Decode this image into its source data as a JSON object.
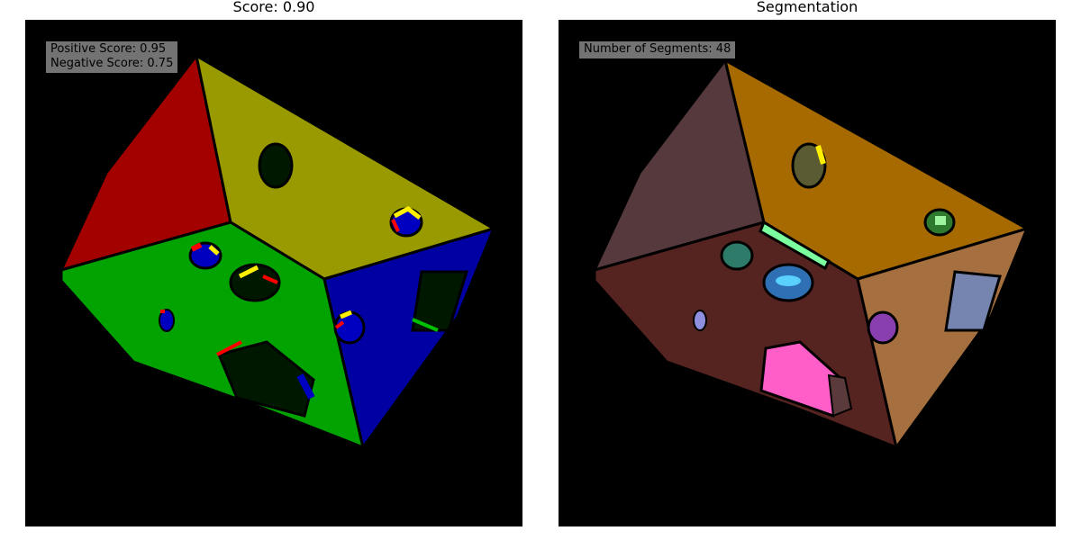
{
  "left_panel": {
    "title": "Score: 0.90",
    "score_lines": [
      "Positive Score: 0.95",
      "Negative Score: 0.75"
    ]
  },
  "right_panel": {
    "title": "Segmentation",
    "segments_label": "Number of Segments: 48"
  },
  "colors": {
    "background": "#000000",
    "score_red": "#a30000",
    "score_yellow": "#999900",
    "score_green": "#00a300",
    "score_blue": "#0000a3",
    "seg_wall_left": "#55393d",
    "seg_wall_top": "#a66a00",
    "seg_floor": "#552320",
    "seg_wall_right": "#a66f3f",
    "seg_pink": "#ff5ec9",
    "seg_lavender": "#7585b0"
  }
}
